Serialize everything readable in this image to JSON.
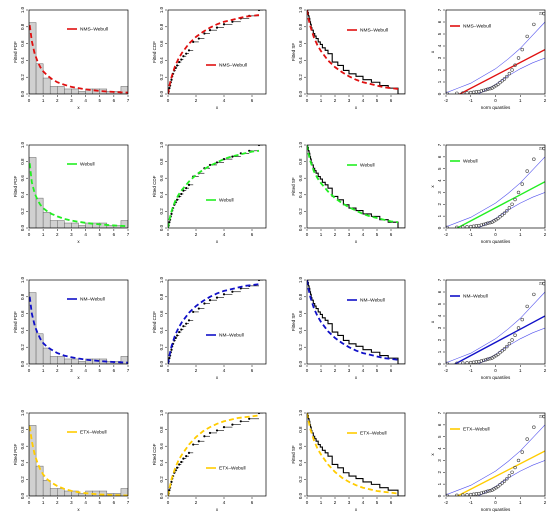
{
  "chart_data": {
    "type": "panel-grid",
    "rows": [
      {
        "model": "NMS–Webull",
        "color": "#e01010"
      },
      {
        "model": "Webull",
        "color": "#22ee22"
      },
      {
        "model": "NM–Webull",
        "color": "#1010c8"
      },
      {
        "model": "ETX–Webull",
        "color": "#ffcc00"
      }
    ],
    "pdf": {
      "ylabel": "Fitted PDF",
      "xlabel": "x",
      "xlim": [
        0,
        7
      ],
      "ylim": [
        0,
        1.0
      ],
      "xticks": [
        "0",
        "1",
        "2",
        "3",
        "4",
        "5",
        "6",
        "7"
      ],
      "yticks": [
        "0.0",
        "0.2",
        "0.4",
        "0.6",
        "0.8",
        "1.0"
      ],
      "histogram": {
        "bin_edges": [
          0,
          0.5,
          1,
          1.5,
          2,
          2.5,
          3,
          3.5,
          4,
          4.5,
          5,
          5.5,
          6,
          6.5,
          7
        ],
        "density": [
          0.85,
          0.36,
          0.19,
          0.09,
          0.09,
          0.06,
          0.06,
          0.03,
          0.06,
          0.06,
          0.06,
          0.03,
          0.03,
          0.09
        ]
      },
      "curves": [
        {
          "model": "NMS–Webull",
          "x": [
            0.05,
            0.2,
            0.4,
            0.6,
            0.8,
            1.0,
            1.3,
            1.6,
            2.0,
            2.5,
            3.0,
            3.5,
            4.0,
            4.5,
            5.0,
            5.5,
            6.0,
            6.5,
            7.0
          ],
          "y": [
            0.82,
            0.63,
            0.48,
            0.39,
            0.32,
            0.27,
            0.22,
            0.18,
            0.14,
            0.11,
            0.085,
            0.07,
            0.055,
            0.045,
            0.036,
            0.03,
            0.025,
            0.02,
            0.017
          ]
        },
        {
          "model": "Webull",
          "x": [
            0.05,
            0.2,
            0.4,
            0.6,
            0.8,
            1.0,
            1.3,
            1.6,
            2.0,
            2.5,
            3.0,
            3.5,
            4.0,
            4.5,
            5.0,
            5.5,
            6.0,
            6.5,
            7.0
          ],
          "y": [
            0.78,
            0.55,
            0.42,
            0.34,
            0.28,
            0.24,
            0.2,
            0.17,
            0.14,
            0.11,
            0.09,
            0.075,
            0.062,
            0.052,
            0.044,
            0.037,
            0.031,
            0.026,
            0.022
          ]
        },
        {
          "model": "NM–Webull",
          "x": [
            0.05,
            0.2,
            0.4,
            0.6,
            0.8,
            1.0,
            1.3,
            1.6,
            2.0,
            2.5,
            3.0,
            3.5,
            4.0,
            4.5,
            5.0,
            5.5,
            6.0,
            6.5,
            7.0
          ],
          "y": [
            0.8,
            0.6,
            0.46,
            0.37,
            0.3,
            0.25,
            0.2,
            0.17,
            0.13,
            0.1,
            0.08,
            0.065,
            0.052,
            0.043,
            0.035,
            0.029,
            0.024,
            0.02,
            0.016
          ]
        },
        {
          "model": "ETX–Webull",
          "x": [
            0.05,
            0.2,
            0.4,
            0.6,
            0.8,
            1.0,
            1.3,
            1.6,
            2.0,
            2.5,
            3.0,
            3.5,
            4.0,
            4.5,
            5.0,
            5.5,
            6.0,
            6.5,
            7.0
          ],
          "y": [
            0.84,
            0.66,
            0.5,
            0.4,
            0.32,
            0.26,
            0.2,
            0.16,
            0.12,
            0.085,
            0.062,
            0.046,
            0.034,
            0.026,
            0.019,
            0.015,
            0.011,
            0.008,
            0.006
          ]
        }
      ]
    },
    "cdf": {
      "ylabel": "Fitted CDF",
      "xlabel": "x",
      "xlim": [
        0,
        7
      ],
      "ylim": [
        0,
        1.0
      ],
      "xticks": [
        "0",
        "2",
        "4",
        "6"
      ],
      "yticks": [
        "0.0",
        "0.2",
        "0.4",
        "0.6",
        "0.8",
        "1.0"
      ],
      "empirical": {
        "x": [
          0.05,
          0.1,
          0.15,
          0.2,
          0.25,
          0.3,
          0.35,
          0.45,
          0.55,
          0.65,
          0.8,
          0.95,
          1.1,
          1.3,
          1.5,
          1.8,
          2.2,
          2.6,
          3.0,
          3.5,
          4.0,
          4.6,
          5.2,
          5.8,
          6.5
        ],
        "y": [
          0.03,
          0.07,
          0.1,
          0.14,
          0.17,
          0.21,
          0.24,
          0.28,
          0.31,
          0.34,
          0.38,
          0.41,
          0.45,
          0.48,
          0.52,
          0.62,
          0.66,
          0.72,
          0.76,
          0.79,
          0.83,
          0.86,
          0.9,
          0.93,
          1.0
        ]
      },
      "curves": [
        {
          "model": "NMS–Webull",
          "x": [
            0,
            0.1,
            0.25,
            0.5,
            0.75,
            1.0,
            1.5,
            2.0,
            2.5,
            3.0,
            3.5,
            4.0,
            4.5,
            5.0,
            5.5,
            6.0,
            6.5
          ],
          "y": [
            0,
            0.1,
            0.2,
            0.33,
            0.42,
            0.49,
            0.6,
            0.68,
            0.74,
            0.79,
            0.83,
            0.86,
            0.88,
            0.9,
            0.92,
            0.93,
            0.94
          ]
        },
        {
          "model": "Webull",
          "x": [
            0,
            0.1,
            0.25,
            0.5,
            0.75,
            1.0,
            1.5,
            2.0,
            2.5,
            3.0,
            3.5,
            4.0,
            4.5,
            5.0,
            5.5,
            6.0,
            6.5
          ],
          "y": [
            0,
            0.1,
            0.2,
            0.32,
            0.4,
            0.46,
            0.56,
            0.64,
            0.7,
            0.75,
            0.79,
            0.83,
            0.86,
            0.88,
            0.9,
            0.92,
            0.93
          ]
        },
        {
          "model": "NM–Webull",
          "x": [
            0,
            0.1,
            0.25,
            0.5,
            0.75,
            1.0,
            1.5,
            2.0,
            2.5,
            3.0,
            3.5,
            4.0,
            4.5,
            5.0,
            5.5,
            6.0,
            6.5
          ],
          "y": [
            0,
            0.1,
            0.21,
            0.34,
            0.43,
            0.5,
            0.61,
            0.69,
            0.75,
            0.8,
            0.84,
            0.87,
            0.89,
            0.91,
            0.93,
            0.94,
            0.95
          ]
        },
        {
          "model": "ETX–Webull",
          "x": [
            0,
            0.1,
            0.25,
            0.5,
            0.75,
            1.0,
            1.5,
            2.0,
            2.5,
            3.0,
            3.5,
            4.0,
            4.5,
            5.0,
            5.5,
            6.0,
            6.5
          ],
          "y": [
            0,
            0.09,
            0.2,
            0.33,
            0.43,
            0.5,
            0.62,
            0.71,
            0.78,
            0.83,
            0.87,
            0.9,
            0.92,
            0.94,
            0.95,
            0.96,
            0.97
          ]
        }
      ]
    },
    "sf": {
      "ylabel": "Fitted SF",
      "xlabel": "x",
      "xlim": [
        0,
        7
      ],
      "ylim": [
        0,
        1.0
      ],
      "xticks": [
        "0",
        "1",
        "2",
        "3",
        "4",
        "5",
        "6"
      ],
      "yticks": [
        "0.0",
        "0.2",
        "0.4",
        "0.6",
        "0.8",
        "1.0"
      ],
      "curves": [
        {
          "model": "NMS–Webull",
          "x": [
            0,
            0.1,
            0.25,
            0.5,
            0.75,
            1.0,
            1.5,
            2.0,
            2.5,
            3.0,
            3.5,
            4.0,
            4.5,
            5.0,
            5.5,
            6.0,
            6.5
          ],
          "y": [
            1.0,
            0.9,
            0.8,
            0.67,
            0.58,
            0.51,
            0.4,
            0.32,
            0.26,
            0.21,
            0.17,
            0.14,
            0.12,
            0.1,
            0.08,
            0.07,
            0.06
          ]
        },
        {
          "model": "Webull",
          "x": [
            0,
            0.1,
            0.25,
            0.5,
            0.75,
            1.0,
            1.5,
            2.0,
            2.5,
            3.0,
            3.5,
            4.0,
            4.5,
            5.0,
            5.5,
            6.0,
            6.5
          ],
          "y": [
            1.0,
            0.9,
            0.8,
            0.68,
            0.6,
            0.54,
            0.44,
            0.36,
            0.3,
            0.25,
            0.21,
            0.17,
            0.14,
            0.12,
            0.1,
            0.08,
            0.07
          ]
        },
        {
          "model": "NM–Webull",
          "x": [
            0,
            0.1,
            0.25,
            0.5,
            0.75,
            1.0,
            1.5,
            2.0,
            2.5,
            3.0,
            3.5,
            4.0,
            4.5,
            5.0,
            5.5,
            6.0,
            6.5
          ],
          "y": [
            1.0,
            0.9,
            0.79,
            0.66,
            0.57,
            0.5,
            0.39,
            0.31,
            0.25,
            0.2,
            0.16,
            0.13,
            0.11,
            0.09,
            0.07,
            0.06,
            0.05
          ]
        },
        {
          "model": "ETX–Webull",
          "x": [
            0,
            0.1,
            0.25,
            0.5,
            0.75,
            1.0,
            1.5,
            2.0,
            2.5,
            3.0,
            3.5,
            4.0,
            4.5,
            5.0,
            5.5,
            6.0,
            6.5
          ],
          "y": [
            1.0,
            0.91,
            0.8,
            0.67,
            0.57,
            0.5,
            0.38,
            0.29,
            0.22,
            0.17,
            0.13,
            0.1,
            0.08,
            0.06,
            0.05,
            0.04,
            0.03
          ]
        }
      ]
    },
    "qq": {
      "ylabel": "x",
      "xlabel": "norm quantiles",
      "xlim": [
        -2,
        2
      ],
      "ylim": [
        0,
        7
      ],
      "xticks": [
        "-2",
        "-1",
        "0",
        "1",
        "2"
      ],
      "yticks": [
        "0",
        "1",
        "2",
        "3",
        "4",
        "5",
        "6",
        "7"
      ],
      "outlier_label": "23",
      "points": {
        "x": [
          -1.96,
          -1.56,
          -1.32,
          -1.15,
          -1.0,
          -0.88,
          -0.77,
          -0.67,
          -0.57,
          -0.48,
          -0.39,
          -0.31,
          -0.22,
          -0.14,
          -0.06,
          0.02,
          0.1,
          0.18,
          0.27,
          0.36,
          0.46,
          0.56,
          0.67,
          0.79,
          0.93,
          1.08,
          1.28,
          1.55,
          1.96
        ],
        "y": [
          0.05,
          0.06,
          0.08,
          0.1,
          0.12,
          0.15,
          0.18,
          0.2,
          0.25,
          0.3,
          0.35,
          0.4,
          0.45,
          0.5,
          0.6,
          0.7,
          0.8,
          0.95,
          1.1,
          1.25,
          1.45,
          1.7,
          2.0,
          2.4,
          3.0,
          3.7,
          4.8,
          5.8,
          6.7
        ]
      },
      "envelope": {
        "x": [
          -2.0,
          -1.5,
          -1.0,
          -0.5,
          0.0,
          0.5,
          1.0,
          1.5,
          2.0
        ],
        "upper": [
          0.1,
          0.5,
          0.9,
          1.5,
          2.1,
          2.9,
          3.8,
          4.9,
          6.0
        ],
        "lower": [
          -1.3,
          -0.8,
          -0.3,
          0.2,
          0.8,
          1.5,
          2.1,
          2.6,
          3.0
        ]
      },
      "lines": [
        {
          "model": "NMS–Webull",
          "x": [
            -2.0,
            2.0
          ],
          "y": [
            -0.6,
            3.7
          ]
        },
        {
          "model": "Webull",
          "x": [
            -2.0,
            2.0
          ],
          "y": [
            -0.5,
            3.9
          ]
        },
        {
          "model": "NM–Webull",
          "x": [
            -2.0,
            2.0
          ],
          "y": [
            -0.4,
            4.0
          ]
        },
        {
          "model": "ETX–Webull",
          "x": [
            -2.0,
            2.0
          ],
          "y": [
            -0.5,
            3.8
          ]
        }
      ]
    }
  }
}
